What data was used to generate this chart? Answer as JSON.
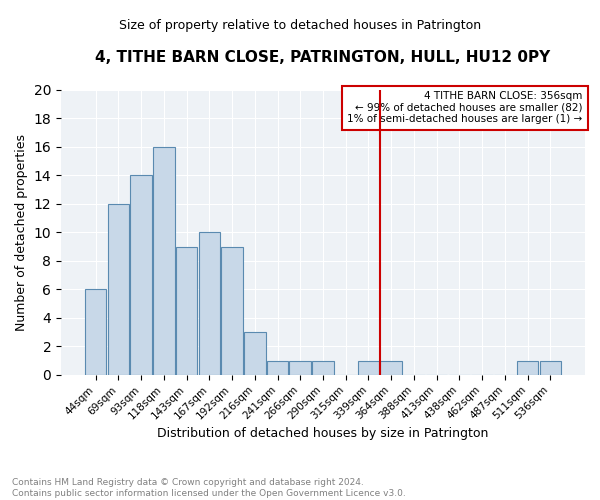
{
  "title": "4, TITHE BARN CLOSE, PATRINGTON, HULL, HU12 0PY",
  "subtitle": "Size of property relative to detached houses in Patrington",
  "xlabel": "Distribution of detached houses by size in Patrington",
  "ylabel": "Number of detached properties",
  "bar_labels": [
    "44sqm",
    "69sqm",
    "93sqm",
    "118sqm",
    "143sqm",
    "167sqm",
    "192sqm",
    "216sqm",
    "241sqm",
    "266sqm",
    "290sqm",
    "315sqm",
    "339sqm",
    "364sqm",
    "388sqm",
    "413sqm",
    "438sqm",
    "462sqm",
    "487sqm",
    "511sqm",
    "536sqm"
  ],
  "bar_values": [
    6,
    12,
    14,
    16,
    9,
    10,
    9,
    3,
    1,
    1,
    1,
    0,
    1,
    1,
    0,
    0,
    0,
    0,
    0,
    1,
    1
  ],
  "bar_color": "#c8d8e8",
  "bar_edge_color": "#5a8ab0",
  "annotation_title": "4 TITHE BARN CLOSE: 356sqm",
  "annotation_line1": "← 99% of detached houses are smaller (82)",
  "annotation_line2": "1% of semi-detached houses are larger (1) →",
  "ylim": [
    0,
    20
  ],
  "yticks": [
    0,
    2,
    4,
    6,
    8,
    10,
    12,
    14,
    16,
    18,
    20
  ],
  "vline_color": "#cc0000",
  "annotation_box_color": "#cc0000",
  "footer_line1": "Contains HM Land Registry data © Crown copyright and database right 2024.",
  "footer_line2": "Contains public sector information licensed under the Open Government Licence v3.0.",
  "bg_color": "#eef2f6"
}
